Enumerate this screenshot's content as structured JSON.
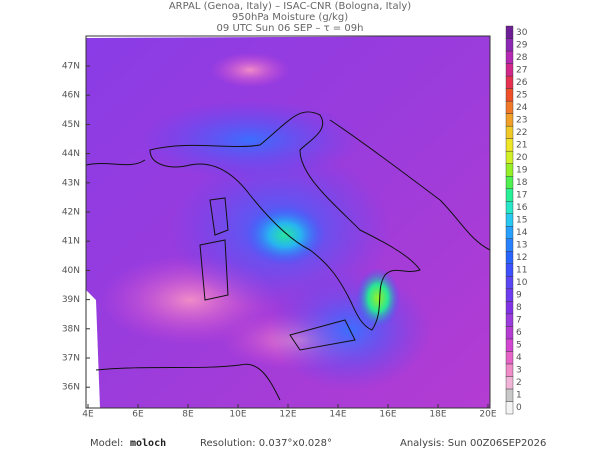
{
  "header": {
    "lines": [
      "ARPAL (Genoa, Italy)  –  ISAC-CNR (Bologna, Italy)",
      "950hPa Moisture (g/kg)",
      "09 UTC Sun 06 SEP  –  τ = 09h"
    ]
  },
  "map": {
    "lon_labels": [
      "4E",
      "6E",
      "8E",
      "10E",
      "12E",
      "14E",
      "16E",
      "18E",
      "20E"
    ],
    "lat_labels": [
      "47N",
      "46N",
      "45N",
      "44N",
      "43N",
      "42N",
      "41N",
      "40N",
      "39N",
      "38N",
      "37N",
      "36N"
    ]
  },
  "colorbar": {
    "labels": [
      0,
      1,
      2,
      3,
      4,
      5,
      6,
      7,
      8,
      9,
      10,
      11,
      12,
      13,
      14,
      15,
      16,
      17,
      18,
      19,
      20,
      21,
      22,
      23,
      24,
      25,
      26,
      27,
      28,
      29,
      30
    ],
    "colors": [
      "#f4f4f4",
      "#c8c8c8",
      "#f0b4d8",
      "#f08cc8",
      "#e664c8",
      "#d246d2",
      "#b43cd2",
      "#9b3cdc",
      "#8232e6",
      "#6e3cf0",
      "#5a46f5",
      "#3c50ff",
      "#2864ff",
      "#2882ff",
      "#28a0ff",
      "#28c8f0",
      "#28e6c8",
      "#28f096",
      "#50f050",
      "#96f028",
      "#d2f028",
      "#f0e628",
      "#f0c828",
      "#f0a028",
      "#f07828",
      "#f05028",
      "#e63250",
      "#d2288c",
      "#b428b4",
      "#8c28b4",
      "#6e1e96"
    ]
  },
  "footer": {
    "model_label": "Model:",
    "model": "moloch",
    "resolution": "Resolution: 0.037°x0.028°",
    "analysis": "Analysis: Sun 00Z06SEP2026"
  }
}
